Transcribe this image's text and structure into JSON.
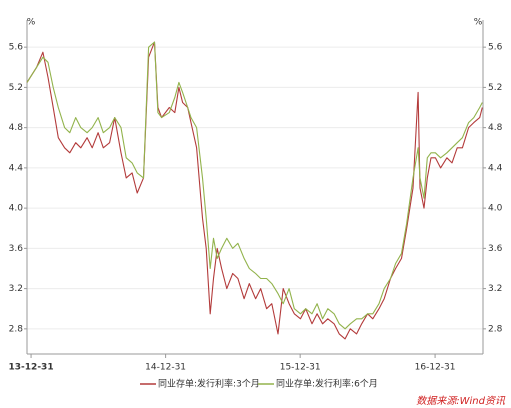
{
  "chart_data": {
    "type": "line",
    "y_unit": "%",
    "y2_unit": "%",
    "source": "数据来源:Wind资讯",
    "xlim": [
      "13-12-20",
      "17-05-10"
    ],
    "xticks": [
      "13-12-31",
      "14-12-31",
      "15-12-31",
      "16-12-31"
    ],
    "ylim": [
      2.55,
      5.87
    ],
    "y2lim": [
      2.55,
      5.87
    ],
    "yticks": [
      2.8,
      3.2,
      3.6,
      {
        "value": 4.0,
        "label": "4.0"
      },
      4.4,
      4.8,
      5.2,
      5.6
    ],
    "y2ticks": [
      2.8,
      3.2,
      3.6,
      {
        "value": 4.0,
        "label": "4.0"
      },
      4.4,
      4.8,
      5.2,
      5.6
    ],
    "grid": true,
    "x": [
      "13-12-20",
      "14-01-15",
      "14-02-01",
      "14-02-15",
      "14-03-01",
      "14-03-15",
      "14-04-01",
      "14-04-15",
      "14-05-01",
      "14-05-15",
      "14-06-01",
      "14-06-15",
      "14-07-01",
      "14-07-15",
      "14-08-01",
      "14-08-15",
      "14-09-01",
      "14-09-15",
      "14-10-01",
      "14-10-15",
      "14-11-01",
      "14-11-15",
      "14-12-01",
      "14-12-10",
      "14-12-20",
      "15-01-10",
      "15-01-25",
      "15-02-05",
      "15-02-15",
      "15-03-01",
      "15-03-10",
      "15-03-25",
      "15-04-10",
      "15-04-20",
      "15-05-01",
      "15-05-10",
      "15-05-20",
      "15-06-01",
      "15-06-15",
      "15-07-01",
      "15-07-15",
      "15-08-01",
      "15-08-15",
      "15-09-01",
      "15-09-15",
      "15-10-01",
      "15-10-15",
      "15-11-01",
      "15-11-15",
      "15-12-01",
      "15-12-15",
      "16-01-01",
      "16-01-15",
      "16-02-01",
      "16-02-15",
      "16-03-01",
      "16-03-15",
      "16-04-01",
      "16-04-15",
      "16-05-01",
      "16-05-15",
      "16-06-01",
      "16-06-15",
      "16-07-01",
      "16-07-15",
      "16-08-01",
      "16-08-15",
      "16-09-01",
      "16-09-15",
      "16-10-01",
      "16-10-15",
      "16-11-01",
      "16-11-15",
      "16-11-20",
      "16-12-01",
      "16-12-10",
      "16-12-20",
      "17-01-01",
      "17-01-15",
      "17-02-01",
      "17-02-15",
      "17-03-01",
      "17-03-15",
      "17-04-01",
      "17-04-15",
      "17-05-01",
      "17-05-08"
    ],
    "series": [
      {
        "name": "同业存单:发行利率:3个月",
        "color": "#b33b3b",
        "values": [
          5.25,
          5.4,
          5.55,
          5.3,
          5.0,
          4.7,
          4.6,
          4.55,
          4.65,
          4.6,
          4.7,
          4.6,
          4.75,
          4.6,
          4.65,
          4.9,
          4.55,
          4.3,
          4.35,
          4.15,
          4.3,
          5.5,
          5.65,
          5.0,
          4.9,
          5.0,
          4.95,
          5.2,
          5.05,
          5.0,
          4.85,
          4.6,
          3.9,
          3.6,
          2.95,
          3.3,
          3.6,
          3.4,
          3.2,
          3.35,
          3.3,
          3.1,
          3.25,
          3.1,
          3.2,
          3.0,
          3.05,
          2.75,
          3.2,
          3.05,
          2.95,
          2.9,
          3.0,
          2.85,
          2.95,
          2.85,
          2.9,
          2.85,
          2.75,
          2.7,
          2.8,
          2.75,
          2.85,
          2.95,
          2.9,
          3.0,
          3.1,
          3.3,
          3.4,
          3.5,
          3.8,
          4.2,
          5.15,
          4.2,
          4.0,
          4.3,
          4.5,
          4.5,
          4.4,
          4.5,
          4.45,
          4.6,
          4.6,
          4.8,
          4.85,
          4.9,
          5.0
        ]
      },
      {
        "name": "同业存单:发行利率:6个月",
        "color": "#92b34c",
        "values": [
          5.25,
          5.4,
          5.5,
          5.45,
          5.2,
          5.0,
          4.8,
          4.75,
          4.9,
          4.8,
          4.75,
          4.8,
          4.9,
          4.75,
          4.8,
          4.9,
          4.8,
          4.5,
          4.45,
          4.35,
          4.3,
          5.6,
          5.65,
          4.95,
          4.9,
          4.95,
          5.1,
          5.25,
          5.15,
          5.0,
          4.9,
          4.8,
          4.3,
          3.9,
          3.4,
          3.7,
          3.5,
          3.6,
          3.7,
          3.6,
          3.65,
          3.5,
          3.4,
          3.35,
          3.3,
          3.3,
          3.25,
          3.15,
          3.05,
          3.2,
          3.0,
          2.95,
          3.0,
          2.95,
          3.05,
          2.9,
          3.0,
          2.95,
          2.85,
          2.8,
          2.85,
          2.9,
          2.9,
          2.95,
          2.95,
          3.05,
          3.2,
          3.3,
          3.45,
          3.55,
          3.85,
          4.3,
          4.6,
          4.3,
          4.1,
          4.5,
          4.55,
          4.55,
          4.5,
          4.55,
          4.6,
          4.65,
          4.7,
          4.85,
          4.9,
          5.0,
          5.05
        ]
      }
    ]
  }
}
